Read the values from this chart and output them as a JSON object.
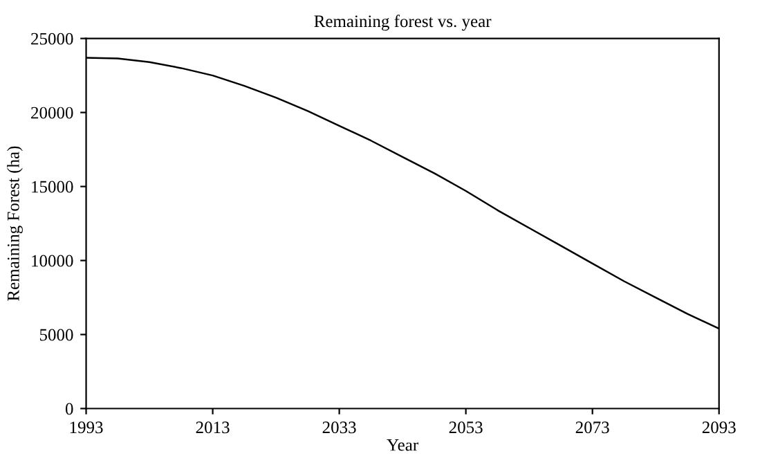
{
  "chart_data": {
    "type": "line",
    "title": "Remaining forest vs. year",
    "xlabel": "Year",
    "ylabel": "Remaining Forest (ha)",
    "x": [
      1993,
      1998,
      2003,
      2008,
      2013,
      2018,
      2023,
      2028,
      2033,
      2038,
      2043,
      2048,
      2053,
      2058,
      2063,
      2068,
      2073,
      2078,
      2083,
      2088,
      2093
    ],
    "series": [
      {
        "color": "#000000",
        "values": [
          23700,
          23650,
          23400,
          23000,
          22500,
          21800,
          21000,
          20100,
          19100,
          18100,
          17000,
          15900,
          14700,
          13400,
          12200,
          11000,
          9800,
          8600,
          7500,
          6400,
          5400
        ]
      }
    ],
    "xlim": [
      1993,
      2093
    ],
    "xticks": [
      1993,
      2013,
      2033,
      2053,
      2073,
      2093
    ],
    "ylim": [
      0,
      25000
    ],
    "yticks": [
      0,
      5000,
      10000,
      15000,
      20000,
      25000
    ],
    "grid": false,
    "legend": false,
    "marker": "none",
    "line_style": "solid"
  }
}
